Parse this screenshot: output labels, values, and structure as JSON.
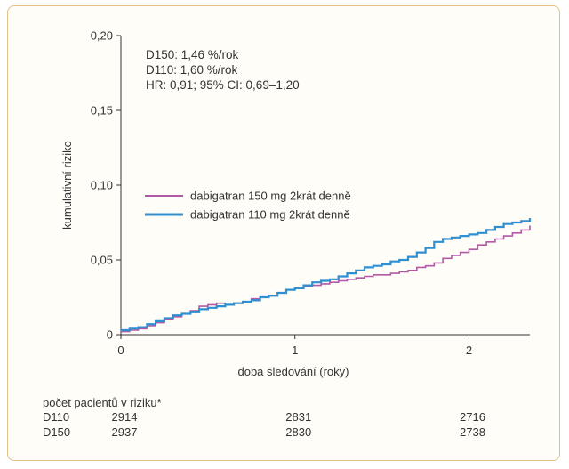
{
  "chart_data": {
    "type": "line",
    "xlabel": "doba sledování (roky)",
    "ylabel": "kumulativní riziko",
    "xlim": [
      0,
      2.35
    ],
    "ylim": [
      0,
      0.2
    ],
    "x_ticks": [
      {
        "v": 0,
        "label": "0"
      },
      {
        "v": 1,
        "label": "1"
      },
      {
        "v": 2,
        "label": "2"
      }
    ],
    "y_ticks": [
      {
        "v": 0,
        "label": "0"
      },
      {
        "v": 0.05,
        "label": "0,05"
      },
      {
        "v": 0.1,
        "label": "0,10"
      },
      {
        "v": 0.15,
        "label": "0,15"
      },
      {
        "v": 0.2,
        "label": "0,20"
      }
    ],
    "annotations": [
      {
        "text": "D150: 1,46 %/rok",
        "color": "#b25aa5"
      },
      {
        "text": "D110: 1,60 %/rok",
        "color": "#2f8fd0"
      },
      {
        "text": "HR: 0,91; 95% CI: 0,69–1,20",
        "color": "#333333"
      }
    ],
    "legend": {
      "placement": "center-left"
    },
    "series": [
      {
        "name": "dabigatran 150 mg 2krát denně",
        "color": "#b25aa5",
        "points": [
          [
            0,
            0.002
          ],
          [
            0.05,
            0.003
          ],
          [
            0.1,
            0.004
          ],
          [
            0.15,
            0.006
          ],
          [
            0.2,
            0.008
          ],
          [
            0.25,
            0.01
          ],
          [
            0.3,
            0.012
          ],
          [
            0.35,
            0.014
          ],
          [
            0.4,
            0.016
          ],
          [
            0.45,
            0.019
          ],
          [
            0.5,
            0.02
          ],
          [
            0.55,
            0.021
          ],
          [
            0.6,
            0.02
          ],
          [
            0.65,
            0.021
          ],
          [
            0.7,
            0.022
          ],
          [
            0.75,
            0.024
          ],
          [
            0.8,
            0.025
          ],
          [
            0.85,
            0.026
          ],
          [
            0.9,
            0.028
          ],
          [
            0.95,
            0.03
          ],
          [
            1.0,
            0.031
          ],
          [
            1.05,
            0.032
          ],
          [
            1.1,
            0.033
          ],
          [
            1.15,
            0.034
          ],
          [
            1.2,
            0.035
          ],
          [
            1.25,
            0.036
          ],
          [
            1.3,
            0.037
          ],
          [
            1.35,
            0.038
          ],
          [
            1.4,
            0.039
          ],
          [
            1.45,
            0.04
          ],
          [
            1.5,
            0.04
          ],
          [
            1.55,
            0.041
          ],
          [
            1.6,
            0.042
          ],
          [
            1.65,
            0.043
          ],
          [
            1.7,
            0.045
          ],
          [
            1.75,
            0.046
          ],
          [
            1.8,
            0.048
          ],
          [
            1.85,
            0.051
          ],
          [
            1.9,
            0.053
          ],
          [
            1.95,
            0.055
          ],
          [
            2.0,
            0.057
          ],
          [
            2.05,
            0.06
          ],
          [
            2.1,
            0.062
          ],
          [
            2.15,
            0.064
          ],
          [
            2.2,
            0.066
          ],
          [
            2.25,
            0.068
          ],
          [
            2.3,
            0.07
          ],
          [
            2.35,
            0.073
          ]
        ]
      },
      {
        "name": "dabigatran 110 mg 2krát denně",
        "color": "#2f8fd0",
        "points": [
          [
            0,
            0.003
          ],
          [
            0.05,
            0.004
          ],
          [
            0.1,
            0.005
          ],
          [
            0.15,
            0.007
          ],
          [
            0.2,
            0.009
          ],
          [
            0.25,
            0.011
          ],
          [
            0.3,
            0.013
          ],
          [
            0.35,
            0.014
          ],
          [
            0.4,
            0.015
          ],
          [
            0.45,
            0.017
          ],
          [
            0.5,
            0.018
          ],
          [
            0.55,
            0.019
          ],
          [
            0.6,
            0.02
          ],
          [
            0.65,
            0.021
          ],
          [
            0.7,
            0.022
          ],
          [
            0.75,
            0.023
          ],
          [
            0.8,
            0.025
          ],
          [
            0.85,
            0.026
          ],
          [
            0.9,
            0.028
          ],
          [
            0.95,
            0.03
          ],
          [
            1.0,
            0.031
          ],
          [
            1.05,
            0.033
          ],
          [
            1.1,
            0.035
          ],
          [
            1.15,
            0.036
          ],
          [
            1.2,
            0.037
          ],
          [
            1.25,
            0.039
          ],
          [
            1.3,
            0.041
          ],
          [
            1.35,
            0.043
          ],
          [
            1.4,
            0.045
          ],
          [
            1.45,
            0.046
          ],
          [
            1.5,
            0.047
          ],
          [
            1.55,
            0.049
          ],
          [
            1.6,
            0.05
          ],
          [
            1.65,
            0.052
          ],
          [
            1.7,
            0.055
          ],
          [
            1.75,
            0.058
          ],
          [
            1.8,
            0.062
          ],
          [
            1.85,
            0.064
          ],
          [
            1.9,
            0.065
          ],
          [
            1.95,
            0.066
          ],
          [
            2.0,
            0.067
          ],
          [
            2.05,
            0.068
          ],
          [
            2.1,
            0.07
          ],
          [
            2.15,
            0.072
          ],
          [
            2.2,
            0.074
          ],
          [
            2.25,
            0.075
          ],
          [
            2.3,
            0.076
          ],
          [
            2.35,
            0.078
          ]
        ]
      }
    ],
    "risk_table": {
      "title": "počet pacientů v riziku*",
      "rows": [
        {
          "label": "D110",
          "color": "#2f8fd0",
          "values": [
            {
              "x": 0,
              "text": "2914"
            },
            {
              "x": 1,
              "text": "2831"
            },
            {
              "x": 2,
              "text": "2716"
            }
          ]
        },
        {
          "label": "D150",
          "color": "#b25aa5",
          "values": [
            {
              "x": 0,
              "text": "2937"
            },
            {
              "x": 1,
              "text": "2830"
            },
            {
              "x": 2,
              "text": "2738"
            }
          ]
        }
      ]
    }
  }
}
